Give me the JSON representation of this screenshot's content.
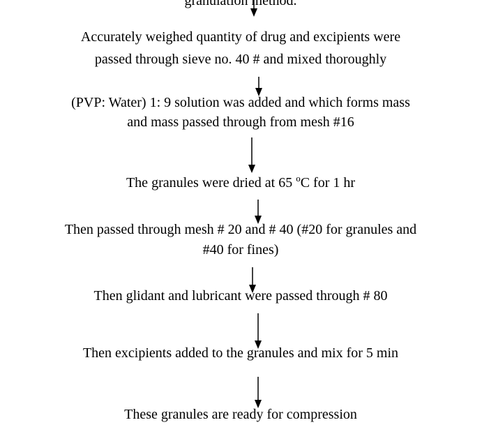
{
  "header": {
    "text": "granulation method."
  },
  "steps": [
    {
      "lines": [
        "Accurately weighed quantity of drug and excipients were",
        "passed through sieve no. 40 # and mixed thoroughly"
      ]
    },
    {
      "lines": [
        "(PVP: Water) 1: 9 solution was added and which forms mass",
        "and mass passed through from mesh #16"
      ]
    },
    {
      "lines": [
        [
          "The granules were dried at 65 ",
          "o",
          "C for 1 hr"
        ]
      ]
    },
    {
      "lines": [
        "Then passed through mesh # 20 and # 40 (#20 for granules  and",
        "#40 for fines)"
      ]
    },
    {
      "lines": [
        "Then glidant and lubricant were passed through # 80"
      ]
    },
    {
      "lines": [
        "Then excipients added to the granules and mix for 5 min"
      ]
    },
    {
      "lines": [
        "These granules are ready for compression"
      ]
    }
  ]
}
